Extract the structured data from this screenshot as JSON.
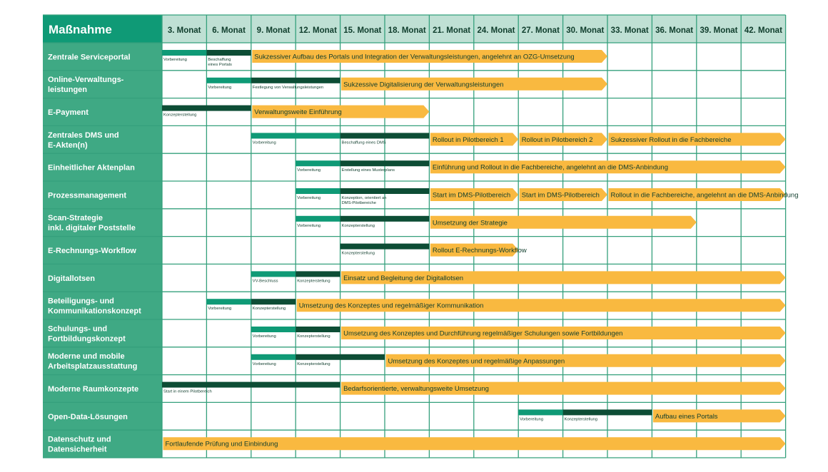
{
  "header": {
    "title": "Maßnahme",
    "months": [
      "3. Monat",
      "6. Monat",
      "9. Monat",
      "12. Monat",
      "15. Monat",
      "18. Monat",
      "21. Monat",
      "24. Monat",
      "27. Monat",
      "30. Monat",
      "33. Monat",
      "36. Monat",
      "39. Monat",
      "42. Monat"
    ]
  },
  "colors": {
    "header_green": "#0f9a76",
    "month_header_bg": "#bfe0d4",
    "label_bg": "#3fa984",
    "grid_line": "#35a07c",
    "prep_bar": "#0f9a76",
    "concept_bar": "#0d4d35",
    "arrow_fill": "#f9b940"
  },
  "rows": [
    {
      "label": [
        "Zentrale Serviceportal"
      ],
      "small": [
        {
          "start": 0,
          "end": 1,
          "type": "prep",
          "text": [
            "Vorbereitung"
          ]
        },
        {
          "start": 1,
          "end": 2,
          "type": "concept",
          "text": [
            "Beschaffung",
            "eines Portals"
          ]
        }
      ],
      "arrows": [
        {
          "start": 2,
          "end": 10,
          "text": "Sukzessiver Aufbau des Portals und Integration der Verwaltungsleistungen, angelehnt an OZG-Umsetzung"
        }
      ]
    },
    {
      "label": [
        "Online-Verwaltungs-",
        "leistungen"
      ],
      "small": [
        {
          "start": 1,
          "end": 2,
          "type": "prep",
          "text": [
            "Vorbereitung"
          ]
        },
        {
          "start": 2,
          "end": 4,
          "type": "concept",
          "text": [
            "Festlegung von Verwaltungsleistungen"
          ]
        }
      ],
      "arrows": [
        {
          "start": 4,
          "end": 10,
          "text": "Sukzessive Digitalisierung der Verwaltungsleistungen"
        }
      ]
    },
    {
      "label": [
        "E-Payment"
      ],
      "small": [
        {
          "start": 0,
          "end": 2,
          "type": "concept",
          "text": [
            "Konzepterstellung"
          ]
        }
      ],
      "arrows": [
        {
          "start": 2,
          "end": 6,
          "text": "Verwaltungsweite Einführung"
        }
      ]
    },
    {
      "label": [
        "Zentrales DMS und",
        "E-Akten(n)"
      ],
      "small": [
        {
          "start": 2,
          "end": 4,
          "type": "prep",
          "text": [
            "Vorbereitung"
          ]
        },
        {
          "start": 4,
          "end": 6,
          "type": "concept",
          "text": [
            "Beschaffung eines DMS"
          ]
        }
      ],
      "arrows": [
        {
          "start": 6,
          "end": 8,
          "text": "Rollout in Pilotbereich 1"
        },
        {
          "start": 8,
          "end": 10,
          "text": "Rollout in Pilotbereich 2"
        },
        {
          "start": 10,
          "end": 14,
          "text": "Sukzessiver Rollout in die Fachbereiche"
        }
      ]
    },
    {
      "label": [
        "Einheitlicher Aktenplan"
      ],
      "small": [
        {
          "start": 3,
          "end": 4,
          "type": "prep",
          "text": [
            "Vorbereitung"
          ]
        },
        {
          "start": 4,
          "end": 6,
          "type": "concept",
          "text": [
            "Erstellung eines Musterplans"
          ]
        }
      ],
      "arrows": [
        {
          "start": 6,
          "end": 14,
          "text": "Einführung und Rollout in die Fachbereiche, angelehnt an die DMS-Anbindung"
        }
      ]
    },
    {
      "label": [
        "Prozessmanagement"
      ],
      "small": [
        {
          "start": 3,
          "end": 4,
          "type": "prep",
          "text": [
            "Vorbereitung"
          ]
        },
        {
          "start": 4,
          "end": 6,
          "type": "concept",
          "text": [
            "Konzeption, orientiert an",
            "DMS-Pilotbereiche"
          ]
        }
      ],
      "arrows": [
        {
          "start": 6,
          "end": 8,
          "text": "Start im DMS-Pilotbereich"
        },
        {
          "start": 8,
          "end": 10,
          "text": "Start im DMS-Pilotbereich"
        },
        {
          "start": 10,
          "end": 14,
          "text": "Rollout in die Fachbereiche, angelehnt an die DMS-Anbindung"
        }
      ]
    },
    {
      "label": [
        "Scan-Strategie",
        "inkl. digitaler Poststelle"
      ],
      "small": [
        {
          "start": 3,
          "end": 4,
          "type": "prep",
          "text": [
            "Vorbereitung"
          ]
        },
        {
          "start": 4,
          "end": 6,
          "type": "concept",
          "text": [
            "Konzepterstellung"
          ]
        }
      ],
      "arrows": [
        {
          "start": 6,
          "end": 12,
          "text": "Umsetzung der Strategie"
        }
      ]
    },
    {
      "label": [
        "E-Rechnungs-Workflow"
      ],
      "small": [
        {
          "start": 4,
          "end": 6,
          "type": "concept",
          "text": [
            "Konzepterstellung"
          ]
        }
      ],
      "arrows": [
        {
          "start": 6,
          "end": 8,
          "text": "Rollout E-Rechnungs-Workflow"
        }
      ]
    },
    {
      "label": [
        "Digitallotsen"
      ],
      "small": [
        {
          "start": 2,
          "end": 3,
          "type": "prep",
          "text": [
            "VV-Beschluss"
          ]
        },
        {
          "start": 3,
          "end": 4,
          "type": "concept",
          "text": [
            "Konzepterstellung"
          ]
        }
      ],
      "arrows": [
        {
          "start": 4,
          "end": 14,
          "text": "Einsatz und Begleitung der Digitallotsen"
        }
      ]
    },
    {
      "label": [
        "Beteiligungs- und",
        "Kommunikationskonzept"
      ],
      "small": [
        {
          "start": 1,
          "end": 2,
          "type": "prep",
          "text": [
            "Vorbereitung"
          ]
        },
        {
          "start": 2,
          "end": 3,
          "type": "concept",
          "text": [
            "Konzepterstellung"
          ]
        }
      ],
      "arrows": [
        {
          "start": 3,
          "end": 14,
          "text": "Umsetzung des Konzeptes und regelmäßiger Kommunikation"
        }
      ]
    },
    {
      "label": [
        "Schulungs- und",
        "Fortbildungskonzept"
      ],
      "small": [
        {
          "start": 2,
          "end": 3,
          "type": "prep",
          "text": [
            "Vorbereitung"
          ]
        },
        {
          "start": 3,
          "end": 4,
          "type": "concept",
          "text": [
            "Konzepterstellung"
          ]
        }
      ],
      "arrows": [
        {
          "start": 4,
          "end": 14,
          "text": "Umsetzung des Konzeptes und Durchführung regelmäßiger Schulungen sowie Fortbildungen"
        }
      ]
    },
    {
      "label": [
        "Moderne und mobile",
        "Arbeitsplatzausstattung"
      ],
      "small": [
        {
          "start": 2,
          "end": 3,
          "type": "prep",
          "text": [
            "Vorbereitung"
          ]
        },
        {
          "start": 3,
          "end": 5,
          "type": "concept",
          "text": [
            "Konzepterstellung"
          ]
        }
      ],
      "arrows": [
        {
          "start": 5,
          "end": 14,
          "text": "Umsetzung des Konzeptes und regelmäßige Anpassungen"
        }
      ]
    },
    {
      "label": [
        "Moderne Raumkonzepte"
      ],
      "small": [
        {
          "start": 0,
          "end": 4,
          "type": "concept",
          "text": [
            "Start in einem Pilotbereich"
          ]
        }
      ],
      "arrows": [
        {
          "start": 4,
          "end": 14,
          "text": "Bedarfsorientierte, verwaltungsweite Umsetzung"
        }
      ]
    },
    {
      "label": [
        "Open-Data-Lösungen"
      ],
      "small": [
        {
          "start": 8,
          "end": 9,
          "type": "prep",
          "text": [
            "Vorbereitung"
          ]
        },
        {
          "start": 9,
          "end": 11,
          "type": "concept",
          "text": [
            "Konzepterstellung"
          ]
        }
      ],
      "arrows": [
        {
          "start": 11,
          "end": 14,
          "text": "Aufbau eines Portals"
        }
      ]
    },
    {
      "label": [
        "Datenschutz und",
        "Datensicherheit"
      ],
      "small": [],
      "arrows": [
        {
          "start": 0,
          "end": 14,
          "text": "Fortlaufende Prüfung und Einbindung"
        }
      ]
    }
  ]
}
